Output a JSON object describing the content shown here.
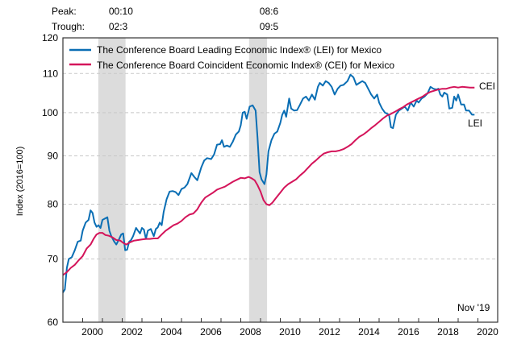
{
  "chart_data": {
    "type": "line",
    "title": "",
    "xlabel": "",
    "ylabel": "Index (2016=100)",
    "y_scale": "log",
    "ylim": [
      60,
      120
    ],
    "xlim": [
      1999.0,
      2021.0
    ],
    "yticks": [
      60,
      70,
      80,
      90,
      100,
      110,
      120
    ],
    "xticks": [
      2000,
      2002,
      2004,
      2006,
      2008,
      2010,
      2012,
      2014,
      2016,
      2018,
      2020
    ],
    "grid": "horizontal-dashed",
    "legend_position": "top-left",
    "annotation": "Nov '19",
    "recession_header": {
      "peak_label": "Peak:",
      "trough_label": "Trough:"
    },
    "recessions": [
      {
        "peak": "00:10",
        "trough": "02:3",
        "start": 2000.79,
        "end": 2002.17
      },
      {
        "peak": "08:6",
        "trough": "09:5",
        "start": 2008.42,
        "end": 2009.33
      }
    ],
    "series": [
      {
        "name": "The Conference Board Leading Economic Index® (LEI) for Mexico",
        "short": "LEI",
        "color": "#0a6eb4",
        "points": [
          [
            1999.0,
            64.5
          ],
          [
            1999.1,
            65.0
          ],
          [
            1999.2,
            68.5
          ],
          [
            1999.3,
            70.0
          ],
          [
            1999.45,
            70.3
          ],
          [
            1999.6,
            71.5
          ],
          [
            1999.75,
            73.0
          ],
          [
            1999.9,
            73.2
          ],
          [
            2000.0,
            75.0
          ],
          [
            2000.15,
            76.5
          ],
          [
            2000.3,
            77.0
          ],
          [
            2000.4,
            78.8
          ],
          [
            2000.5,
            78.3
          ],
          [
            2000.6,
            76.5
          ],
          [
            2000.7,
            75.7
          ],
          [
            2000.8,
            76.0
          ],
          [
            2000.9,
            75.5
          ],
          [
            2001.0,
            77.0
          ],
          [
            2001.15,
            77.3
          ],
          [
            2001.25,
            77.5
          ],
          [
            2001.35,
            75.0
          ],
          [
            2001.45,
            74.0
          ],
          [
            2001.6,
            73.0
          ],
          [
            2001.7,
            72.5
          ],
          [
            2001.85,
            73.5
          ],
          [
            2001.95,
            74.3
          ],
          [
            2002.05,
            74.5
          ],
          [
            2002.15,
            71.5
          ],
          [
            2002.25,
            71.6
          ],
          [
            2002.35,
            73.0
          ],
          [
            2002.45,
            73.3
          ],
          [
            2002.55,
            74.0
          ],
          [
            2002.7,
            75.5
          ],
          [
            2002.8,
            75.0
          ],
          [
            2002.9,
            74.5
          ],
          [
            2003.0,
            75.5
          ],
          [
            2003.1,
            75.2
          ],
          [
            2003.2,
            73.5
          ],
          [
            2003.3,
            75.0
          ],
          [
            2003.45,
            75.3
          ],
          [
            2003.6,
            74.0
          ],
          [
            2003.7,
            75.3
          ],
          [
            2003.8,
            75.6
          ],
          [
            2003.9,
            76.5
          ],
          [
            2004.0,
            76.0
          ],
          [
            2004.1,
            78.5
          ],
          [
            2004.25,
            81.0
          ],
          [
            2004.4,
            82.5
          ],
          [
            2004.55,
            82.6
          ],
          [
            2004.7,
            82.4
          ],
          [
            2004.85,
            81.8
          ],
          [
            2005.0,
            83.0
          ],
          [
            2005.15,
            83.3
          ],
          [
            2005.3,
            84.0
          ],
          [
            2005.5,
            86.3
          ],
          [
            2005.65,
            85.5
          ],
          [
            2005.8,
            84.8
          ],
          [
            2006.0,
            87.5
          ],
          [
            2006.15,
            89.0
          ],
          [
            2006.3,
            89.5
          ],
          [
            2006.5,
            89.3
          ],
          [
            2006.65,
            90.3
          ],
          [
            2006.8,
            92.5
          ],
          [
            2006.95,
            92.6
          ],
          [
            2007.05,
            93.5
          ],
          [
            2007.15,
            92.0
          ],
          [
            2007.3,
            92.3
          ],
          [
            2007.45,
            92.0
          ],
          [
            2007.6,
            93.2
          ],
          [
            2007.75,
            94.8
          ],
          [
            2007.9,
            95.5
          ],
          [
            2008.0,
            97.0
          ],
          [
            2008.1,
            100.0
          ],
          [
            2008.2,
            100.2
          ],
          [
            2008.3,
            98.5
          ],
          [
            2008.45,
            101.5
          ],
          [
            2008.6,
            101.8
          ],
          [
            2008.75,
            100.5
          ],
          [
            2008.85,
            94.0
          ],
          [
            2008.95,
            86.5
          ],
          [
            2009.05,
            85.0
          ],
          [
            2009.2,
            84.0
          ],
          [
            2009.3,
            86.0
          ],
          [
            2009.4,
            91.0
          ],
          [
            2009.55,
            93.5
          ],
          [
            2009.7,
            95.0
          ],
          [
            2009.85,
            95.5
          ],
          [
            2010.0,
            97.5
          ],
          [
            2010.1,
            99.5
          ],
          [
            2010.2,
            100.5
          ],
          [
            2010.3,
            99.0
          ],
          [
            2010.45,
            103.5
          ],
          [
            2010.55,
            101.0
          ],
          [
            2010.7,
            100.5
          ],
          [
            2010.85,
            100.6
          ],
          [
            2011.0,
            102.0
          ],
          [
            2011.15,
            103.5
          ],
          [
            2011.3,
            104.0
          ],
          [
            2011.45,
            103.0
          ],
          [
            2011.6,
            104.5
          ],
          [
            2011.75,
            103.2
          ],
          [
            2011.9,
            106.5
          ],
          [
            2012.0,
            107.5
          ],
          [
            2012.15,
            106.8
          ],
          [
            2012.3,
            108.0
          ],
          [
            2012.45,
            107.5
          ],
          [
            2012.6,
            106.5
          ],
          [
            2012.75,
            104.5
          ],
          [
            2012.9,
            106.0
          ],
          [
            2013.05,
            106.8
          ],
          [
            2013.2,
            107.0
          ],
          [
            2013.4,
            108.0
          ],
          [
            2013.55,
            109.7
          ],
          [
            2013.7,
            109.0
          ],
          [
            2013.85,
            107.0
          ],
          [
            2014.0,
            107.5
          ],
          [
            2014.15,
            108.0
          ],
          [
            2014.3,
            107.5
          ],
          [
            2014.45,
            106.0
          ],
          [
            2014.6,
            104.5
          ],
          [
            2014.75,
            103.5
          ],
          [
            2014.9,
            104.5
          ],
          [
            2015.0,
            102.5
          ],
          [
            2015.15,
            101.0
          ],
          [
            2015.3,
            100.0
          ],
          [
            2015.5,
            99.5
          ],
          [
            2015.6,
            96.5
          ],
          [
            2015.7,
            96.3
          ],
          [
            2015.85,
            99.5
          ],
          [
            2016.0,
            100.5
          ],
          [
            2016.15,
            101.0
          ],
          [
            2016.3,
            101.5
          ],
          [
            2016.45,
            100.5
          ],
          [
            2016.6,
            102.5
          ],
          [
            2016.75,
            101.5
          ],
          [
            2016.9,
            103.0
          ],
          [
            2017.0,
            102.5
          ],
          [
            2017.15,
            103.5
          ],
          [
            2017.3,
            104.0
          ],
          [
            2017.45,
            104.8
          ],
          [
            2017.6,
            106.5
          ],
          [
            2017.75,
            106.0
          ],
          [
            2017.9,
            105.8
          ],
          [
            2018.0,
            106.0
          ],
          [
            2018.1,
            104.5
          ],
          [
            2018.2,
            104.0
          ],
          [
            2018.3,
            105.0
          ],
          [
            2018.45,
            104.5
          ],
          [
            2018.55,
            101.0
          ],
          [
            2018.7,
            101.2
          ],
          [
            2018.8,
            104.0
          ],
          [
            2018.9,
            103.0
          ],
          [
            2019.0,
            104.5
          ],
          [
            2019.15,
            102.0
          ],
          [
            2019.3,
            102.0
          ],
          [
            2019.4,
            100.5
          ],
          [
            2019.55,
            100.5
          ],
          [
            2019.7,
            99.5
          ],
          [
            2019.83,
            99.5
          ]
        ]
      },
      {
        "name": "The Conference Board Coincident Economic Index® (CEI) for Mexico",
        "short": "CEI",
        "color": "#d4145a",
        "points": [
          [
            1999.0,
            67.3
          ],
          [
            1999.2,
            67.8
          ],
          [
            1999.4,
            68.5
          ],
          [
            1999.6,
            69.0
          ],
          [
            1999.8,
            69.8
          ],
          [
            2000.0,
            70.5
          ],
          [
            2000.2,
            71.8
          ],
          [
            2000.4,
            72.5
          ],
          [
            2000.55,
            73.5
          ],
          [
            2000.7,
            74.3
          ],
          [
            2000.85,
            74.6
          ],
          [
            2001.0,
            74.6
          ],
          [
            2001.15,
            74.2
          ],
          [
            2001.3,
            74.1
          ],
          [
            2001.5,
            73.8
          ],
          [
            2001.7,
            73.3
          ],
          [
            2001.9,
            73.2
          ],
          [
            2002.05,
            72.8
          ],
          [
            2002.2,
            72.5
          ],
          [
            2002.4,
            72.9
          ],
          [
            2002.6,
            73.2
          ],
          [
            2002.8,
            73.3
          ],
          [
            2003.0,
            73.4
          ],
          [
            2003.2,
            73.5
          ],
          [
            2003.4,
            73.5
          ],
          [
            2003.6,
            73.6
          ],
          [
            2003.8,
            73.6
          ],
          [
            2004.0,
            74.3
          ],
          [
            2004.2,
            75.0
          ],
          [
            2004.4,
            75.5
          ],
          [
            2004.6,
            76.0
          ],
          [
            2004.8,
            76.3
          ],
          [
            2005.0,
            76.8
          ],
          [
            2005.2,
            77.5
          ],
          [
            2005.4,
            78.0
          ],
          [
            2005.6,
            78.2
          ],
          [
            2005.8,
            79.0
          ],
          [
            2006.0,
            80.3
          ],
          [
            2006.2,
            81.3
          ],
          [
            2006.4,
            81.8
          ],
          [
            2006.6,
            82.3
          ],
          [
            2006.8,
            82.9
          ],
          [
            2007.0,
            83.2
          ],
          [
            2007.2,
            83.5
          ],
          [
            2007.4,
            84.0
          ],
          [
            2007.6,
            84.5
          ],
          [
            2007.8,
            84.9
          ],
          [
            2008.0,
            85.3
          ],
          [
            2008.2,
            85.2
          ],
          [
            2008.4,
            85.5
          ],
          [
            2008.55,
            85.2
          ],
          [
            2008.7,
            84.8
          ],
          [
            2008.85,
            83.8
          ],
          [
            2009.0,
            82.5
          ],
          [
            2009.15,
            80.8
          ],
          [
            2009.3,
            80.0
          ],
          [
            2009.45,
            79.8
          ],
          [
            2009.6,
            80.3
          ],
          [
            2009.8,
            81.3
          ],
          [
            2010.0,
            82.3
          ],
          [
            2010.2,
            83.3
          ],
          [
            2010.4,
            84.0
          ],
          [
            2010.6,
            84.5
          ],
          [
            2010.8,
            85.0
          ],
          [
            2011.0,
            85.8
          ],
          [
            2011.2,
            86.5
          ],
          [
            2011.4,
            87.4
          ],
          [
            2011.6,
            88.3
          ],
          [
            2011.8,
            89.0
          ],
          [
            2012.0,
            89.8
          ],
          [
            2012.2,
            90.5
          ],
          [
            2012.4,
            90.8
          ],
          [
            2012.6,
            91.0
          ],
          [
            2012.8,
            91.0
          ],
          [
            2013.0,
            91.2
          ],
          [
            2013.2,
            91.5
          ],
          [
            2013.4,
            92.0
          ],
          [
            2013.6,
            92.6
          ],
          [
            2013.8,
            93.5
          ],
          [
            2014.0,
            94.3
          ],
          [
            2014.2,
            94.8
          ],
          [
            2014.4,
            95.5
          ],
          [
            2014.6,
            96.3
          ],
          [
            2014.8,
            97.0
          ],
          [
            2015.0,
            97.8
          ],
          [
            2015.2,
            98.6
          ],
          [
            2015.4,
            99.3
          ],
          [
            2015.6,
            99.7
          ],
          [
            2015.8,
            100.2
          ],
          [
            2016.0,
            100.8
          ],
          [
            2016.2,
            101.3
          ],
          [
            2016.4,
            102.0
          ],
          [
            2016.6,
            102.5
          ],
          [
            2016.8,
            103.0
          ],
          [
            2017.0,
            103.5
          ],
          [
            2017.2,
            104.0
          ],
          [
            2017.4,
            104.7
          ],
          [
            2017.6,
            105.2
          ],
          [
            2017.8,
            105.5
          ],
          [
            2018.0,
            105.8
          ],
          [
            2018.2,
            106.0
          ],
          [
            2018.4,
            106.0
          ],
          [
            2018.6,
            106.3
          ],
          [
            2018.8,
            106.5
          ],
          [
            2019.0,
            106.3
          ],
          [
            2019.2,
            106.5
          ],
          [
            2019.4,
            106.4
          ],
          [
            2019.6,
            106.3
          ],
          [
            2019.83,
            106.3
          ]
        ]
      }
    ]
  }
}
